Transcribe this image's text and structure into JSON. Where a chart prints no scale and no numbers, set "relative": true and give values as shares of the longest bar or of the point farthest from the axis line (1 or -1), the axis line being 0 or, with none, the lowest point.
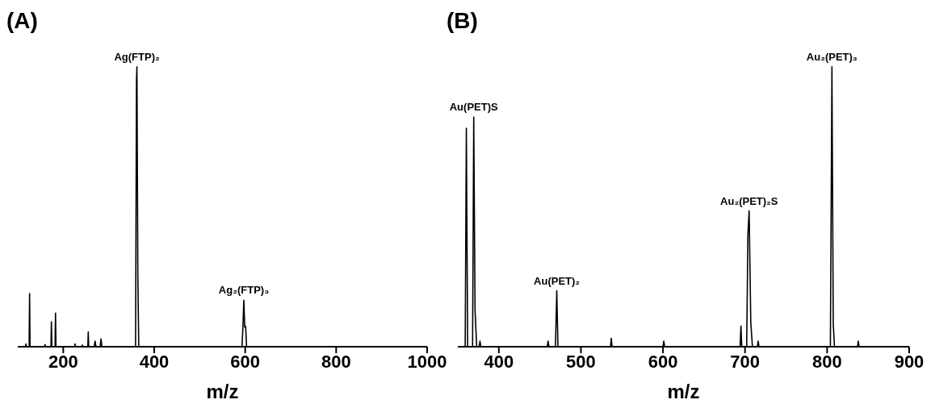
{
  "chart_data": [
    {
      "type": "line",
      "title": "(A)",
      "xlabel": "m/z",
      "relative": true,
      "xlim": [
        100,
        1000
      ],
      "xticks": [
        200,
        400,
        600,
        800,
        1000
      ],
      "series": [
        {
          "color": "#000000",
          "x": [
            100,
            117,
            118,
            119,
            125,
            126,
            127,
            159,
            160,
            161,
            173,
            174,
            175,
            182,
            183,
            184,
            225,
            226,
            227,
            241,
            242,
            243,
            254,
            255,
            256,
            268,
            270,
            272,
            281,
            283,
            285,
            359,
            361,
            362,
            364,
            366,
            593,
            595,
            597,
            599,
            601,
            603,
            1000
          ],
          "values": [
            0,
            0,
            0.01,
            0,
            0,
            0.19,
            0,
            0,
            0.008,
            0,
            0,
            0.089,
            0,
            0,
            0.12,
            0,
            0,
            0.01,
            0,
            0,
            0.006,
            0,
            0,
            0.053,
            0,
            0,
            0.02,
            0,
            0,
            0.028,
            0,
            0,
            0.95,
            1,
            0.25,
            0,
            0,
            0.07,
            0.166,
            0.07,
            0.073,
            0,
            0
          ]
        }
      ],
      "annotations": [
        {
          "text": "Ag(FTP)₂",
          "x": 362,
          "y": 1
        },
        {
          "text": "Ag₂(FTP)₃",
          "x": 597,
          "y": 0.166
        }
      ]
    },
    {
      "type": "line",
      "title": "(B)",
      "xlabel": "m/z",
      "relative": true,
      "xlim": [
        350,
        900
      ],
      "xticks": [
        400,
        500,
        600,
        700,
        800,
        900
      ],
      "series": [
        {
          "color": "#000000",
          "x": [
            350,
            359,
            360.4,
            362,
            368,
            369.4,
            371,
            373,
            376,
            377,
            378,
            459,
            460,
            461,
            469,
            470.6,
            472,
            536,
            537,
            538,
            600,
            601,
            602,
            694,
            695,
            696,
            702,
            703.5,
            705,
            707,
            709,
            715,
            716,
            717,
            804,
            805.9,
            807.5,
            809,
            837,
            838,
            839,
            900
          ],
          "values": [
            0,
            0,
            0.78,
            0,
            0,
            0.82,
            0.13,
            0,
            0,
            0.02,
            0,
            0,
            0.02,
            0,
            0,
            0.2,
            0,
            0,
            0.03,
            0,
            0,
            0.02,
            0,
            0,
            0.074,
            0,
            0,
            0.4,
            0.485,
            0.088,
            0,
            0,
            0.02,
            0,
            0,
            1,
            0.083,
            0,
            0,
            0.02,
            0,
            0
          ]
        }
      ],
      "annotations": [
        {
          "text": "Au(PET)S",
          "x": 369.4,
          "y": 0.82
        },
        {
          "text": "Au(PET)₂",
          "x": 470.6,
          "y": 0.2
        },
        {
          "text": "Au₂(PET)₂S",
          "x": 705,
          "y": 0.485
        },
        {
          "text": "Au₂(PET)₃",
          "x": 805.9,
          "y": 1
        }
      ]
    }
  ]
}
